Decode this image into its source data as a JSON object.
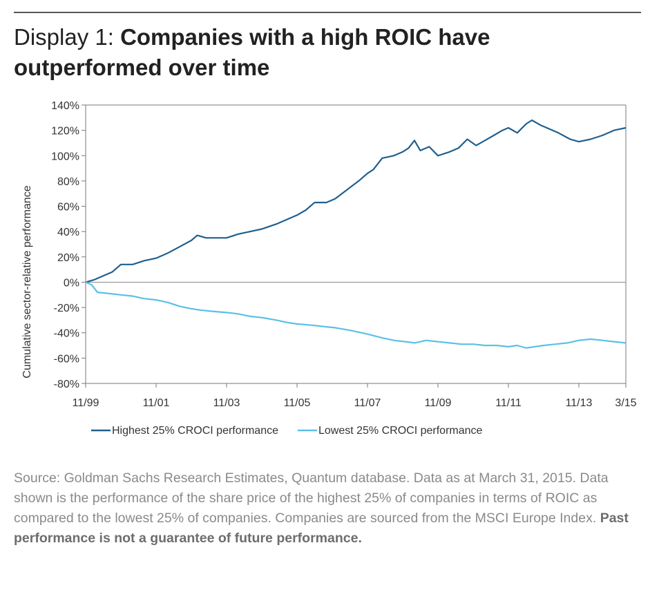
{
  "header": {
    "title_prefix": "Display 1: ",
    "title_main": "Companies with a high ROIC have outperformed over time"
  },
  "chart_data": {
    "type": "line",
    "ylabel": "Cumulative sector-relative performance",
    "ylim": [
      -80,
      140
    ],
    "yticks": [
      -80,
      -60,
      -40,
      -20,
      0,
      20,
      40,
      60,
      80,
      100,
      120,
      140
    ],
    "ytick_labels": [
      "-80%",
      "-60%",
      "-40%",
      "-20%",
      "0%",
      "20%",
      "40%",
      "60%",
      "80%",
      "100%",
      "120%",
      "140%"
    ],
    "xlim": [
      "1999-11",
      "2015-03"
    ],
    "xticks": [
      "1999-11",
      "2001-11",
      "2003-11",
      "2005-11",
      "2007-11",
      "2009-11",
      "2011-11",
      "2013-11",
      "2015-03"
    ],
    "xtick_labels": [
      "11/99",
      "11/01",
      "11/03",
      "11/05",
      "11/07",
      "11/09",
      "11/11",
      "11/13",
      "3/15"
    ],
    "grid": false,
    "legend_position": "bottom",
    "series": [
      {
        "name": "Highest 25% CROCI performance",
        "color": "#1f5f8e",
        "points": [
          [
            "1999-11",
            0
          ],
          [
            "2000-02",
            2
          ],
          [
            "2000-05",
            5
          ],
          [
            "2000-08",
            8
          ],
          [
            "2000-11",
            14
          ],
          [
            "2001-03",
            14
          ],
          [
            "2001-07",
            17
          ],
          [
            "2001-11",
            19
          ],
          [
            "2002-03",
            23
          ],
          [
            "2002-07",
            28
          ],
          [
            "2002-11",
            33
          ],
          [
            "2003-01",
            37
          ],
          [
            "2003-04",
            35
          ],
          [
            "2003-08",
            35
          ],
          [
            "2003-11",
            35
          ],
          [
            "2004-03",
            38
          ],
          [
            "2004-07",
            40
          ],
          [
            "2004-11",
            42
          ],
          [
            "2005-04",
            46
          ],
          [
            "2005-08",
            50
          ],
          [
            "2005-11",
            53
          ],
          [
            "2006-02",
            57
          ],
          [
            "2006-05",
            63
          ],
          [
            "2006-09",
            63
          ],
          [
            "2006-12",
            66
          ],
          [
            "2007-04",
            73
          ],
          [
            "2007-08",
            80
          ],
          [
            "2007-11",
            86
          ],
          [
            "2008-01",
            89
          ],
          [
            "2008-04",
            98
          ],
          [
            "2008-08",
            100
          ],
          [
            "2008-11",
            103
          ],
          [
            "2009-01",
            106
          ],
          [
            "2009-03",
            112
          ],
          [
            "2009-05",
            104
          ],
          [
            "2009-08",
            107
          ],
          [
            "2009-11",
            100
          ],
          [
            "2010-03",
            103
          ],
          [
            "2010-06",
            106
          ],
          [
            "2010-09",
            113
          ],
          [
            "2010-12",
            108
          ],
          [
            "2011-03",
            112
          ],
          [
            "2011-06",
            116
          ],
          [
            "2011-09",
            120
          ],
          [
            "2011-11",
            122
          ],
          [
            "2012-02",
            118
          ],
          [
            "2012-05",
            125
          ],
          [
            "2012-07",
            128
          ],
          [
            "2012-10",
            124
          ],
          [
            "2013-01",
            121
          ],
          [
            "2013-04",
            118
          ],
          [
            "2013-08",
            113
          ],
          [
            "2013-11",
            111
          ],
          [
            "2014-03",
            113
          ],
          [
            "2014-07",
            116
          ],
          [
            "2014-11",
            120
          ],
          [
            "2015-03",
            122
          ]
        ]
      },
      {
        "name": "Lowest 25% CROCI performance",
        "color": "#5bc0e6",
        "points": [
          [
            "1999-11",
            0
          ],
          [
            "2000-01",
            -2
          ],
          [
            "2000-03",
            -8
          ],
          [
            "2000-07",
            -9
          ],
          [
            "2000-11",
            -10
          ],
          [
            "2001-03",
            -11
          ],
          [
            "2001-07",
            -13
          ],
          [
            "2001-11",
            -14
          ],
          [
            "2002-03",
            -16
          ],
          [
            "2002-07",
            -19
          ],
          [
            "2002-11",
            -21
          ],
          [
            "2003-02",
            -22
          ],
          [
            "2003-06",
            -23
          ],
          [
            "2003-11",
            -24
          ],
          [
            "2004-03",
            -25
          ],
          [
            "2004-07",
            -27
          ],
          [
            "2004-11",
            -28
          ],
          [
            "2005-04",
            -30
          ],
          [
            "2005-08",
            -32
          ],
          [
            "2005-11",
            -33
          ],
          [
            "2006-04",
            -34
          ],
          [
            "2006-08",
            -35
          ],
          [
            "2006-12",
            -36
          ],
          [
            "2007-05",
            -38
          ],
          [
            "2007-11",
            -41
          ],
          [
            "2008-04",
            -44
          ],
          [
            "2008-08",
            -46
          ],
          [
            "2008-12",
            -47
          ],
          [
            "2009-03",
            -48
          ],
          [
            "2009-07",
            -46
          ],
          [
            "2009-11",
            -47
          ],
          [
            "2010-03",
            -48
          ],
          [
            "2010-07",
            -49
          ],
          [
            "2010-11",
            -49
          ],
          [
            "2011-03",
            -50
          ],
          [
            "2011-07",
            -50
          ],
          [
            "2011-11",
            -51
          ],
          [
            "2012-02",
            -50
          ],
          [
            "2012-05",
            -52
          ],
          [
            "2012-08",
            -51
          ],
          [
            "2012-11",
            -50
          ],
          [
            "2013-03",
            -49
          ],
          [
            "2013-07",
            -48
          ],
          [
            "2013-11",
            -46
          ],
          [
            "2014-03",
            -45
          ],
          [
            "2014-07",
            -46
          ],
          [
            "2014-11",
            -47
          ],
          [
            "2015-03",
            -48
          ]
        ]
      }
    ]
  },
  "footer": {
    "source_text": "Source: Goldman Sachs Research Estimates, Quantum database. Data as at March 31, 2015. Data shown is the performance of the share price of the highest 25% of companies in terms of ROIC as compared to the lowest 25% of companies. Companies are sourced from the MSCI Europe Index. ",
    "disclaimer": "Past performance is not a guarantee of future performance."
  }
}
